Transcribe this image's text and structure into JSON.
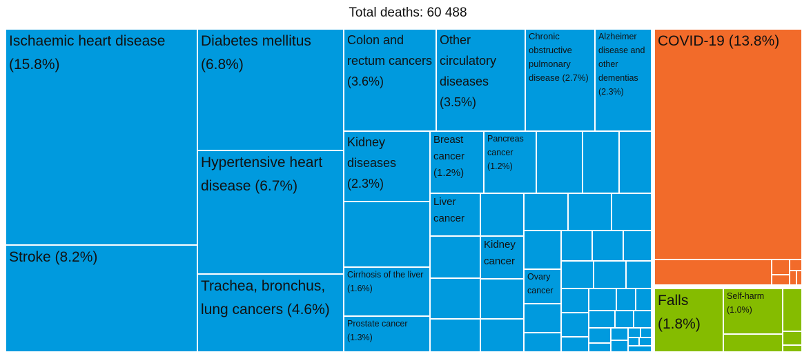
{
  "chart_data": {
    "type": "treemap",
    "title": "Total deaths: 60 488",
    "tiles": [
      {
        "name": "Ischaemic heart disease",
        "value": 15.8,
        "value_label": "(15.8%)",
        "color": "#009ade"
      },
      {
        "name": "Stroke",
        "value": 8.2,
        "value_label": "(8.2%)",
        "color": "#009ade"
      },
      {
        "name": "Diabetes mellitus",
        "value": 6.8,
        "value_label": "(6.8%)",
        "color": "#009ade"
      },
      {
        "name": "Hypertensive heart disease",
        "value": 6.7,
        "value_label": "(6.7%)",
        "color": "#009ade"
      },
      {
        "name": "Trachea, bronchus, lung cancers",
        "value": 4.6,
        "value_label": "(4.6%)",
        "color": "#009ade"
      },
      {
        "name": "Colon and rectum cancers",
        "value": 3.6,
        "value_label": "(3.6%)",
        "color": "#009ade"
      },
      {
        "name": "Other circulatory diseases",
        "value": 3.5,
        "value_label": "(3.5%)",
        "color": "#009ade"
      },
      {
        "name": "Chronic obstructive pulmonary disease",
        "value": 2.7,
        "value_label": "(2.7%)",
        "color": "#009ade"
      },
      {
        "name": "Alzheimer disease and other dementias",
        "value": 2.3,
        "value_label": "(2.3%)",
        "color": "#009ade"
      },
      {
        "name": "Kidney diseases",
        "value": 2.3,
        "value_label": "(2.3%)",
        "color": "#009ade"
      },
      {
        "name": "Breast cancer",
        "value": 1.2,
        "value_label": "(1.2%)",
        "color": "#009ade"
      },
      {
        "name": "Pancreas cancer",
        "value": 1.2,
        "value_label": "(1.2%)",
        "color": "#009ade"
      },
      {
        "name": "Liver cancer",
        "value": null,
        "color": "#009ade"
      },
      {
        "name": "Cirrhosis of the liver",
        "value": 1.6,
        "value_label": "(1.6%)",
        "color": "#009ade"
      },
      {
        "name": "Prostate cancer",
        "value": 1.3,
        "value_label": "(1.3%)",
        "color": "#009ade"
      },
      {
        "name": "Kidney cancer",
        "value": null,
        "color": "#009ade"
      },
      {
        "name": "Ovary cancer",
        "value": null,
        "color": "#009ade"
      },
      {
        "name": "COVID-19",
        "value": 13.8,
        "value_label": "(13.8%)",
        "color": "#f26b2a"
      },
      {
        "name": "Falls",
        "value": 1.8,
        "value_label": "(1.8%)",
        "color": "#85bc00"
      },
      {
        "name": "Self-harm",
        "value": 1.0,
        "value_label": "(1.0%)",
        "color": "#85bc00"
      }
    ]
  }
}
